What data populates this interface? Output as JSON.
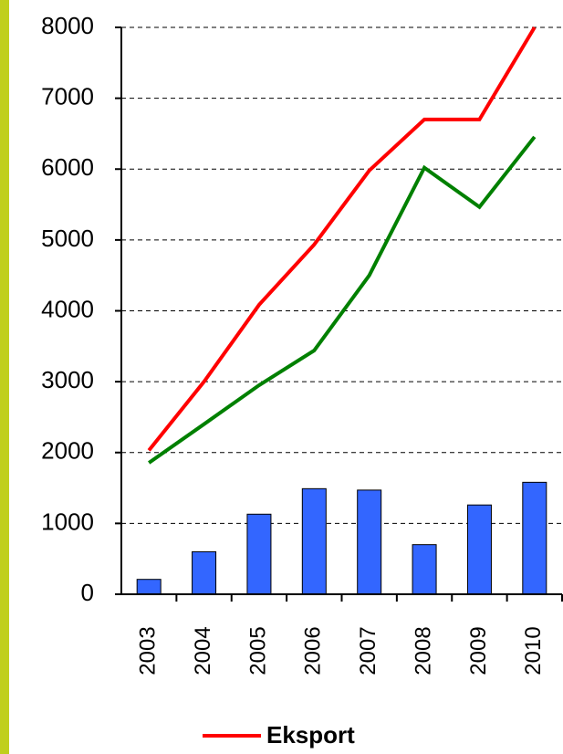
{
  "chart_data": {
    "type": "bar_line",
    "categories": [
      "2003",
      "2004",
      "2005",
      "2006",
      "2007",
      "2008",
      "2009",
      "2010"
    ],
    "bars": {
      "color": "#3366ff",
      "values": [
        210,
        600,
        1130,
        1490,
        1470,
        700,
        1260,
        1580
      ]
    },
    "series": [
      {
        "name": "Eksport",
        "color": "#ff0000",
        "values": [
          2030,
          3000,
          4085,
          4935,
          5980,
          6700,
          6700,
          8000
        ]
      },
      {
        "color": "#008000",
        "values": [
          1855,
          2400,
          2950,
          3440,
          4500,
          6020,
          5465,
          6455
        ]
      }
    ],
    "ylim": [
      0,
      8000
    ],
    "yticks": [
      0,
      1000,
      2000,
      3000,
      4000,
      5000,
      6000,
      7000,
      8000
    ],
    "grid": true,
    "legend": "bottom"
  }
}
